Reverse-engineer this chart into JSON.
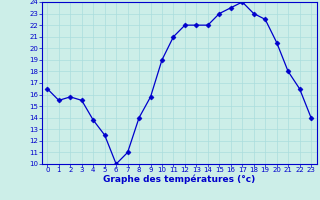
{
  "hours": [
    0,
    1,
    2,
    3,
    4,
    5,
    6,
    7,
    8,
    9,
    10,
    11,
    12,
    13,
    14,
    15,
    16,
    17,
    18,
    19,
    20,
    21,
    22,
    23
  ],
  "temps": [
    16.5,
    15.5,
    15.8,
    15.5,
    13.8,
    12.5,
    10.0,
    11.0,
    14.0,
    15.8,
    19.0,
    21.0,
    22.0,
    22.0,
    22.0,
    23.0,
    23.5,
    24.0,
    23.0,
    22.5,
    20.5,
    18.0,
    16.5,
    14.0
  ],
  "line_color": "#0000cc",
  "marker": "D",
  "marker_size": 2.5,
  "bg_color": "#cceee8",
  "grid_color": "#aadddd",
  "xlabel": "Graphe des températures (°c)",
  "tick_label_color": "#0000cc",
  "ylim": [
    10,
    24
  ],
  "xlim_min": -0.5,
  "xlim_max": 23.5,
  "yticks": [
    10,
    11,
    12,
    13,
    14,
    15,
    16,
    17,
    18,
    19,
    20,
    21,
    22,
    23,
    24
  ],
  "xticks": [
    0,
    1,
    2,
    3,
    4,
    5,
    6,
    7,
    8,
    9,
    10,
    11,
    12,
    13,
    14,
    15,
    16,
    17,
    18,
    19,
    20,
    21,
    22,
    23
  ],
  "tick_fontsize": 5.0,
  "xlabel_fontsize": 6.5,
  "xlabel_fontweight": "bold"
}
